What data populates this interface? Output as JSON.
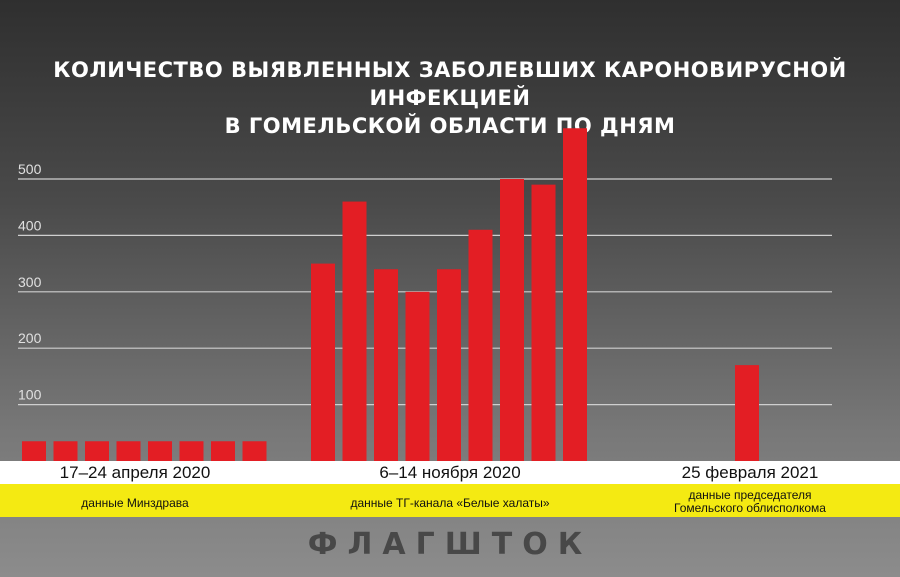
{
  "title": {
    "line1": "КОЛИЧЕСТВО ВЫЯВЛЕННЫХ ЗАБОЛЕВШИХ КАРОНОВИРУСНОЙ ИНФЕКЦИЕЙ",
    "line2": "В ГОМЕЛЬСКОЙ ОБЛАСТИ ПО ДНЯМ"
  },
  "periods": [
    {
      "label": "17–24 апреля 2020",
      "source": "данные Минздрава"
    },
    {
      "label": "6–14 ноября 2020",
      "source": "данные ТГ-канала «Белые халаты»"
    },
    {
      "label": "25 февраля 2021",
      "source_line1": "данные председателя",
      "source_line2": "Гомельского облисполкома"
    }
  ],
  "brand": "ФЛАГШТОК",
  "colors": {
    "bar": "#e31e24",
    "gridline": "#cfcfcf",
    "tick_label": "#e0e0e0",
    "band_white": "#ffffff",
    "band_yellow": "#f4ea12"
  },
  "chart_data": {
    "type": "bar",
    "ylim": [
      0,
      600
    ],
    "yticks": [
      100,
      200,
      300,
      400,
      500
    ],
    "grid": true,
    "groups": [
      {
        "period": "17–24 апреля 2020",
        "values": [
          35,
          35,
          35,
          35,
          35,
          35,
          35,
          35
        ]
      },
      {
        "period": "6–14 ноября 2020",
        "values": [
          350,
          460,
          340,
          300,
          340,
          410,
          500,
          490,
          590
        ]
      },
      {
        "period": "25 февраля 2021",
        "values": [
          170
        ]
      }
    ]
  }
}
